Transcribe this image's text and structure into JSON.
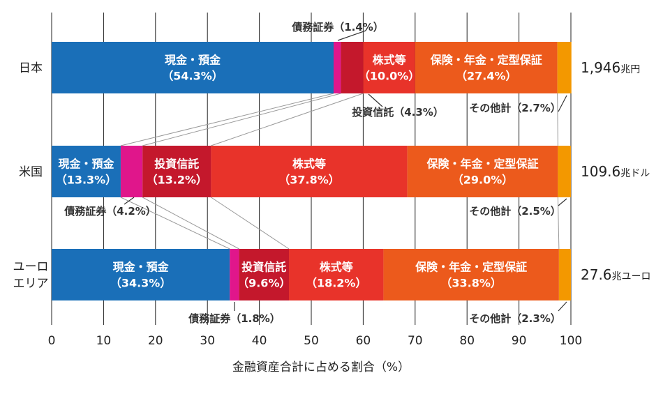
{
  "chart_data": {
    "type": "bar",
    "stacked": true,
    "orientation": "horizontal",
    "xlabel": "金融資産合計に占める割合（%）",
    "xlim": [
      0,
      100
    ],
    "x_ticks": [
      "0",
      "10",
      "20",
      "30",
      "40",
      "50",
      "60",
      "70",
      "80",
      "90",
      "100"
    ],
    "grid": true,
    "categories": [
      {
        "label": [
          "日本"
        ],
        "total": "1,946",
        "total_unit": "兆円"
      },
      {
        "label": [
          "米国"
        ],
        "total": "109.6",
        "total_unit": "兆ドル"
      },
      {
        "label": [
          "ユーロ",
          "エリア"
        ],
        "total": "27.6",
        "total_unit": "兆ユーロ"
      }
    ],
    "colors": {
      "現金・預金": "#1a6fb8",
      "債務証券": "#e0168b",
      "投資信託": "#c4182c",
      "株式等": "#e8332a",
      "保険・年金・定型保証": "#ec5a1c",
      "その他計": "#f39800"
    },
    "series": [
      {
        "name": "現金・預金",
        "values": [
          54.3,
          13.3,
          34.3
        ],
        "labels": [
          [
            "現金・預金",
            "（54.3%）"
          ],
          [
            "現金・預金",
            "（13.3%）"
          ],
          [
            "現金・預金",
            "（34.3%）"
          ]
        ]
      },
      {
        "name": "債務証券",
        "values": [
          1.4,
          4.2,
          1.8
        ],
        "labels": [
          "債務証券（1.4%）",
          "債務証券（4.2%）",
          "債務証券（1.8%）"
        ]
      },
      {
        "name": "投資信託",
        "values": [
          4.3,
          13.2,
          9.6
        ],
        "labels": [
          "投資信託（4.3%）",
          [
            "投資信託",
            "（13.2%）"
          ],
          [
            "投資信託",
            "（9.6%）"
          ]
        ]
      },
      {
        "name": "株式等",
        "values": [
          10.0,
          37.8,
          18.2
        ],
        "labels": [
          [
            "株式等",
            "（10.0%）"
          ],
          [
            "株式等",
            "（37.8%）"
          ],
          [
            "株式等",
            "（18.2%）"
          ]
        ]
      },
      {
        "name": "保険・年金・定型保証",
        "values": [
          27.4,
          29.0,
          33.8
        ],
        "labels": [
          [
            "保険・年金・定型保証",
            "（27.4%）"
          ],
          [
            "保険・年金・定型保証",
            "（29.0%）"
          ],
          [
            "保険・年金・定型保証",
            "（33.8%）"
          ]
        ]
      },
      {
        "name": "その他計",
        "values": [
          2.7,
          2.5,
          2.3
        ],
        "labels": [
          "その他計（2.7%）",
          "その他計（2.5%）",
          "その他計（2.3%）"
        ]
      }
    ]
  }
}
